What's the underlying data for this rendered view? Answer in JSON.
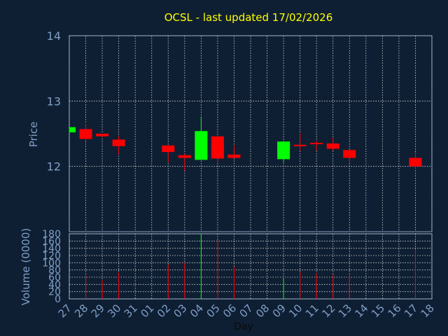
{
  "chart_data": {
    "title": "OCSL - last updated 17/02/2026",
    "type": "candlestick",
    "price_panel": {
      "ylabel": "Price",
      "ylim": [
        11.0,
        14.0
      ],
      "yticks": [
        12,
        13,
        14
      ]
    },
    "volume_panel": {
      "ylabel": "Volume (0000)",
      "ylim": [
        0,
        180
      ],
      "yticks": [
        0,
        20,
        40,
        60,
        80,
        100,
        120,
        140,
        160,
        180
      ]
    },
    "xlabel": "Day",
    "day_labels": [
      "27",
      "28",
      "29",
      "30",
      "31",
      "01",
      "02",
      "03",
      "04",
      "05",
      "06",
      "07",
      "08",
      "09",
      "10",
      "11",
      "12",
      "13",
      "14",
      "15",
      "16",
      "17",
      "18"
    ],
    "colors": {
      "up": "#00ff00",
      "down": "#ff0000",
      "grid": "#d8d8d8",
      "panel": "#0f1f33",
      "axis_text": "#7f9fc6",
      "title": "#ffff00"
    },
    "candles": [
      {
        "day": "27",
        "open": 12.52,
        "high": 12.6,
        "low": 12.52,
        "close": 12.6,
        "volume": 0
      },
      {
        "day": "28",
        "open": 12.57,
        "high": 12.65,
        "low": 12.4,
        "close": 12.42,
        "volume": 70
      },
      {
        "day": "29",
        "open": 12.5,
        "high": 12.5,
        "low": 12.45,
        "close": 12.46,
        "volume": 52
      },
      {
        "day": "30",
        "open": 12.41,
        "high": 12.47,
        "low": 12.19,
        "close": 12.31,
        "volume": 73
      },
      {
        "day": "02",
        "open": 12.32,
        "high": 12.32,
        "low": 12.06,
        "close": 12.22,
        "volume": 95
      },
      {
        "day": "03",
        "open": 12.17,
        "high": 12.19,
        "low": 11.94,
        "close": 12.13,
        "volume": 100
      },
      {
        "day": "04",
        "open": 12.1,
        "high": 12.75,
        "low": 12.1,
        "close": 12.54,
        "volume": 180
      },
      {
        "day": "05",
        "open": 12.46,
        "high": 12.47,
        "low": 12.06,
        "close": 12.12,
        "volume": 162
      },
      {
        "day": "06",
        "open": 12.18,
        "high": 12.32,
        "low": 12.13,
        "close": 12.13,
        "volume": 88
      },
      {
        "day": "09",
        "open": 12.11,
        "high": 12.39,
        "low": 12.06,
        "close": 12.38,
        "volume": 55
      },
      {
        "day": "10",
        "open": 12.33,
        "high": 12.51,
        "low": 12.24,
        "close": 12.31,
        "volume": 76
      },
      {
        "day": "11",
        "open": 12.36,
        "high": 12.39,
        "low": 12.24,
        "close": 12.34,
        "volume": 71
      },
      {
        "day": "12",
        "open": 12.35,
        "high": 12.44,
        "low": 12.24,
        "close": 12.27,
        "volume": 68
      },
      {
        "day": "13",
        "open": 12.25,
        "high": 12.25,
        "low": 12.06,
        "close": 12.13,
        "volume": 70
      },
      {
        "day": "17",
        "open": 12.13,
        "high": 12.22,
        "low": 11.96,
        "close": 12.0,
        "volume": 138
      }
    ]
  }
}
